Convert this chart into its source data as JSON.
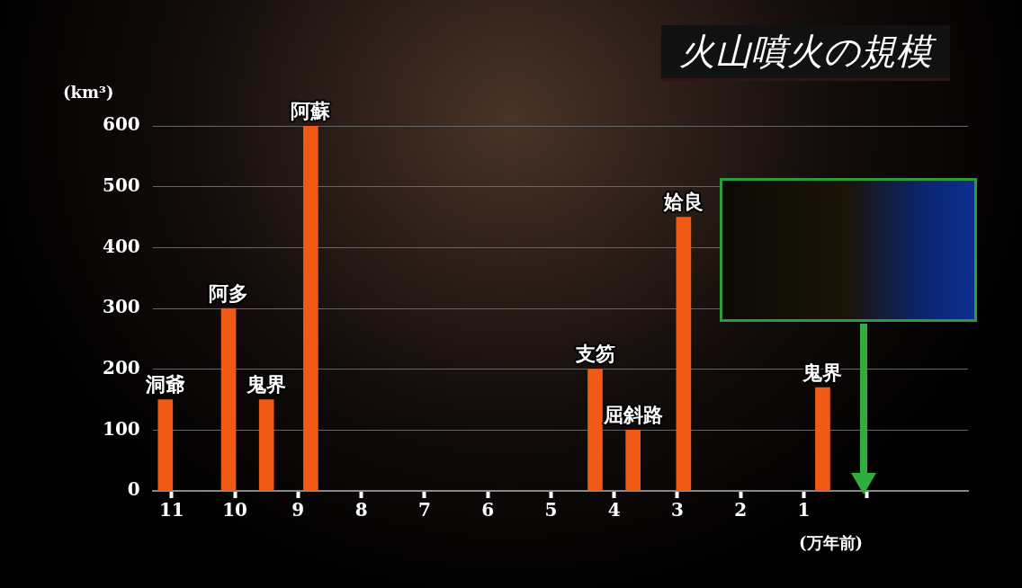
{
  "chart_data": {
    "type": "bar",
    "title": "火山噴火の規模",
    "ylabel": "(km³)",
    "xlabel": "(万年前)",
    "x": [
      11.1,
      10.1,
      9.5,
      8.8,
      4.3,
      3.7,
      2.9,
      0.7
    ],
    "values": [
      150,
      300,
      150,
      600,
      200,
      100,
      450,
      170
    ],
    "color": "#f05a14",
    "xlim": [
      11.3,
      -1.6
    ],
    "xticks": [
      11,
      10,
      9,
      8,
      7,
      6,
      5,
      4,
      3,
      2,
      1,
      {
        "value": 0,
        "label": null
      }
    ],
    "ylim": [
      0,
      600
    ],
    "yticks": [
      0,
      100,
      200,
      300,
      400,
      500,
      600
    ],
    "grid": "y",
    "legend": false,
    "annotations": [
      {
        "text": "洞爺",
        "x": 11.1,
        "y": 150
      },
      {
        "text": "阿多",
        "x": 10.1,
        "y": 300
      },
      {
        "text": "鬼界",
        "x": 9.5,
        "y": 150
      },
      {
        "text": "阿蘇",
        "x": 8.8,
        "y": 600
      },
      {
        "text": "支笏",
        "x": 4.3,
        "y": 200
      },
      {
        "text": "屈斜路",
        "x": 3.7,
        "y": 100
      },
      {
        "text": "姶良",
        "x": 2.9,
        "y": 450
      },
      {
        "text": "鬼界",
        "x": 0.7,
        "y": 170
      }
    ]
  }
}
